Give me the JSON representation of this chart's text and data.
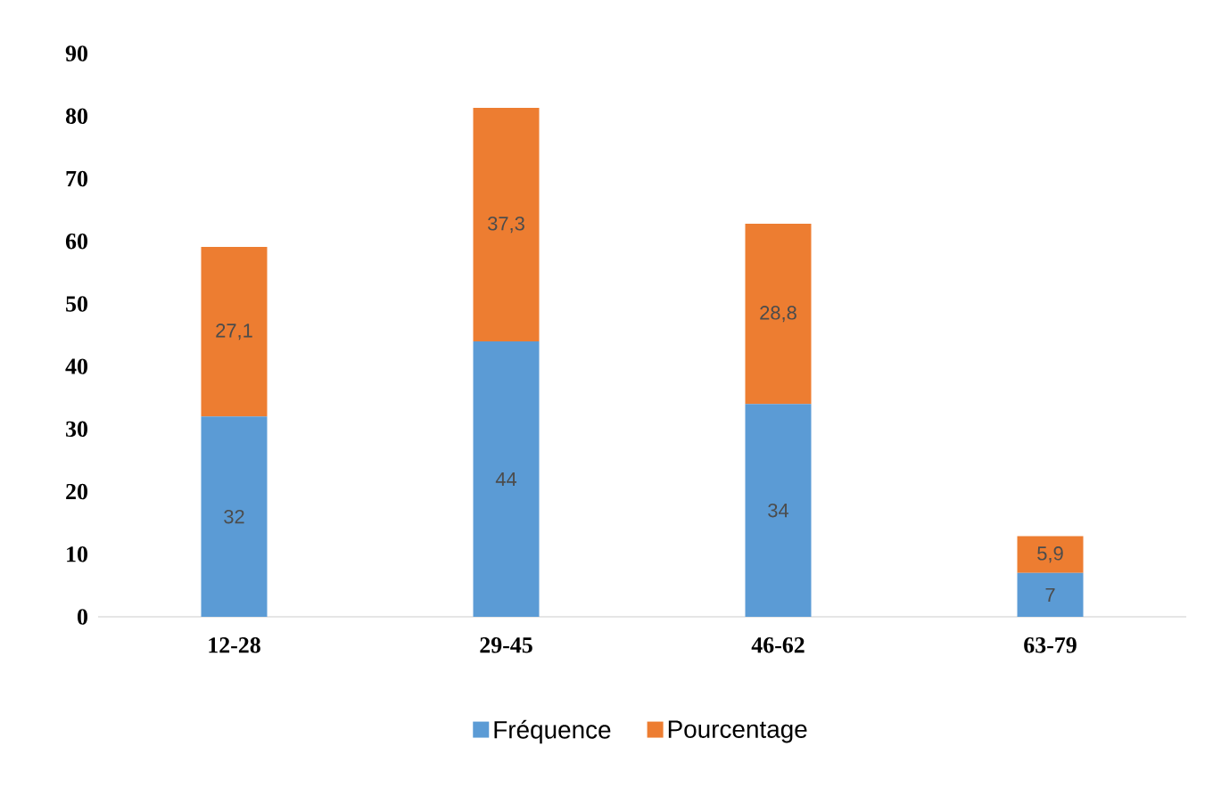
{
  "chart_data": {
    "type": "bar",
    "stacked": true,
    "categories": [
      "12-28",
      "29-45",
      "46-62",
      "63-79"
    ],
    "series": [
      {
        "name": "Fréquence",
        "color": "#5b9bd5",
        "values": [
          32,
          44,
          34,
          7
        ],
        "value_labels": [
          "32",
          "44",
          "34",
          "7"
        ]
      },
      {
        "name": "Pourcentage",
        "color": "#ed7d31",
        "values": [
          27.1,
          37.3,
          28.8,
          5.9
        ],
        "value_labels": [
          "27,1",
          "37,3",
          "28,8",
          "5,9"
        ]
      }
    ],
    "ylim": [
      0,
      90
    ],
    "yticks": [
      0,
      10,
      20,
      30,
      40,
      50,
      60,
      70,
      80,
      90
    ],
    "grid": false,
    "legend": "bottom"
  }
}
